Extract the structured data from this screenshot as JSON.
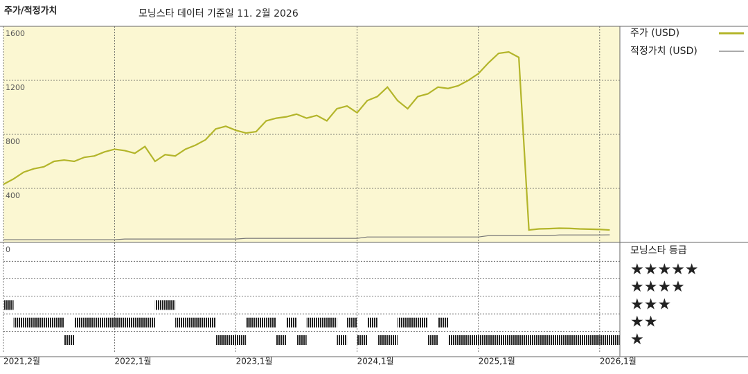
{
  "chart_data": [
    {
      "type": "line",
      "title": "주가/적정가치",
      "subtitle": "모닝스타 데이터 기준일 11. 2월 2026",
      "x": [
        "2021-02",
        "2021-03",
        "2021-04",
        "2021-05",
        "2021-06",
        "2021-07",
        "2021-08",
        "2021-09",
        "2021-10",
        "2021-11",
        "2021-12",
        "2022-01",
        "2022-02",
        "2022-03",
        "2022-04",
        "2022-05",
        "2022-06",
        "2022-07",
        "2022-08",
        "2022-09",
        "2022-10",
        "2022-11",
        "2022-12",
        "2023-01",
        "2023-02",
        "2023-03",
        "2023-04",
        "2023-05",
        "2023-06",
        "2023-07",
        "2023-08",
        "2023-09",
        "2023-10",
        "2023-11",
        "2023-12",
        "2024-01",
        "2024-02",
        "2024-03",
        "2024-04",
        "2024-05",
        "2024-06",
        "2024-07",
        "2024-08",
        "2024-09",
        "2024-10",
        "2024-11",
        "2024-12",
        "2025-01",
        "2025-02",
        "2025-03",
        "2025-04",
        "2025-05",
        "2025-06",
        "2025-07",
        "2025-08",
        "2025-09",
        "2025-10",
        "2025-11",
        "2025-12",
        "2026-01",
        "2026-02"
      ],
      "xlim": [
        "2021-02",
        "2026-03"
      ],
      "xticks": [
        {
          "value": "2021-02",
          "label": "2021,2월"
        },
        {
          "value": "2022-01",
          "label": "2022,1월"
        },
        {
          "value": "2023-01",
          "label": "2023,1월"
        },
        {
          "value": "2024-01",
          "label": "2024,1월"
        },
        {
          "value": "2025-01",
          "label": "2025,1월"
        },
        {
          "value": "2026-01",
          "label": "2026,1월"
        }
      ],
      "ylim": [
        0,
        1600
      ],
      "yticks": [
        0,
        400,
        800,
        1200,
        1600
      ],
      "grid": true,
      "background": "#fbf7d2",
      "series": [
        {
          "name": "주가 (USD)",
          "color": "#b3b52a",
          "values": [
            430,
            470,
            520,
            545,
            560,
            600,
            610,
            600,
            630,
            640,
            670,
            690,
            680,
            660,
            710,
            600,
            650,
            640,
            690,
            720,
            760,
            840,
            860,
            830,
            810,
            820,
            900,
            920,
            930,
            950,
            920,
            940,
            900,
            990,
            1010,
            960,
            1050,
            1080,
            1150,
            1050,
            990,
            1080,
            1100,
            1150,
            1140,
            1160,
            1200,
            1250,
            1330,
            1400,
            1410,
            1370,
            92,
            100,
            102,
            105,
            104,
            100,
            98,
            96,
            92
          ]
        },
        {
          "name": "적정가치 (USD)",
          "color": "#777777",
          "values": [
            20,
            20,
            20,
            20,
            20,
            20,
            20,
            20,
            20,
            20,
            20,
            20,
            25,
            25,
            25,
            25,
            25,
            25,
            25,
            25,
            25,
            25,
            25,
            25,
            30,
            30,
            30,
            30,
            30,
            30,
            30,
            30,
            30,
            30,
            30,
            30,
            40,
            40,
            40,
            40,
            40,
            40,
            40,
            40,
            40,
            40,
            40,
            40,
            50,
            50,
            50,
            50,
            50,
            50,
            50,
            55,
            55,
            55,
            55,
            55,
            56
          ]
        }
      ]
    },
    {
      "type": "rating",
      "title": "모닝스타 등급",
      "color": "#222222",
      "categories": [
        "★",
        "★★",
        "★★★",
        "★★★★",
        "★★★★★"
      ],
      "x": [
        "2021-02",
        "2021-03",
        "2021-04",
        "2021-05",
        "2021-06",
        "2021-07",
        "2021-08",
        "2021-09",
        "2021-10",
        "2021-11",
        "2021-12",
        "2022-01",
        "2022-02",
        "2022-03",
        "2022-04",
        "2022-05",
        "2022-06",
        "2022-07",
        "2022-08",
        "2022-09",
        "2022-10",
        "2022-11",
        "2022-12",
        "2023-01",
        "2023-02",
        "2023-03",
        "2023-04",
        "2023-05",
        "2023-06",
        "2023-07",
        "2023-08",
        "2023-09",
        "2023-10",
        "2023-11",
        "2023-12",
        "2024-01",
        "2024-02",
        "2024-03",
        "2024-04",
        "2024-05",
        "2024-06",
        "2024-07",
        "2024-08",
        "2024-09",
        "2024-10",
        "2024-11",
        "2024-12",
        "2025-01",
        "2025-02",
        "2025-03",
        "2025-04",
        "2025-05",
        "2025-06",
        "2025-07",
        "2025-08",
        "2025-09",
        "2025-10",
        "2025-11",
        "2025-12",
        "2026-01",
        "2026-02"
      ],
      "values": [
        3,
        2,
        2,
        2,
        2,
        2,
        1,
        2,
        2,
        2,
        2,
        2,
        2,
        2,
        2,
        3,
        3,
        2,
        2,
        2,
        2,
        1,
        1,
        1,
        2,
        2,
        2,
        1,
        2,
        1,
        2,
        2,
        2,
        1,
        2,
        1,
        2,
        1,
        1,
        2,
        2,
        2,
        1,
        2,
        1,
        1,
        1,
        1,
        1,
        1,
        1,
        1,
        1,
        1,
        1,
        1,
        1,
        1,
        1,
        1,
        1
      ]
    }
  ]
}
